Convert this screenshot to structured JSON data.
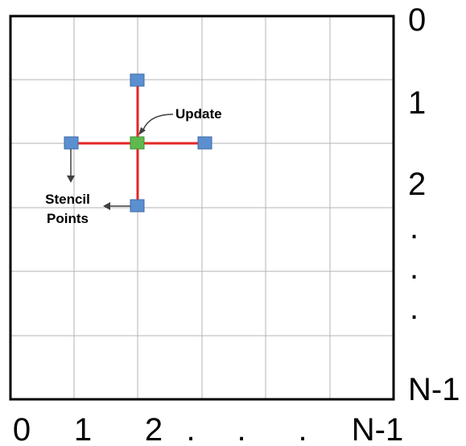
{
  "colors": {
    "grid": "#b3b3b3",
    "border": "#000000",
    "stencil_line": "#e32626",
    "stencil_point": "#5b8fd0",
    "update_point": "#5fb94e",
    "arrow": "#404040"
  },
  "x_axis_labels": [
    "0",
    "1",
    "2",
    ".",
    ".",
    ".",
    "N-1"
  ],
  "y_axis_labels": [
    "0",
    "1",
    "2",
    ".",
    ".",
    ".",
    "N-1"
  ],
  "annotations": {
    "update": "Update",
    "stencil_line1": "Stencil",
    "stencil_line2": "Points"
  }
}
